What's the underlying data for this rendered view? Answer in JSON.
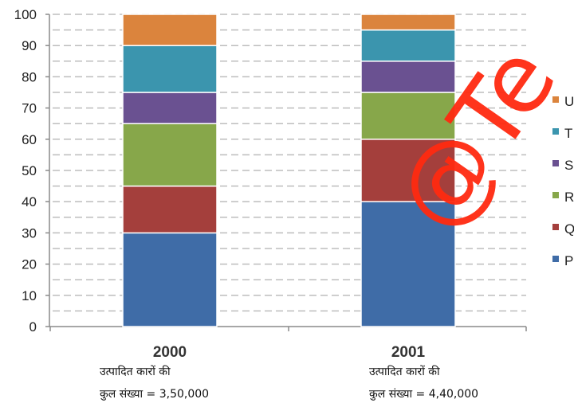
{
  "chart_data": {
    "type": "bar",
    "stacked": true,
    "categories": [
      "2000",
      "2001"
    ],
    "series": [
      {
        "name": "P",
        "color": "#3f6ca7",
        "values": [
          30,
          40
        ]
      },
      {
        "name": "Q",
        "color": "#a43f3c",
        "values": [
          15,
          20
        ]
      },
      {
        "name": "R",
        "color": "#87a74a",
        "values": [
          20,
          15
        ]
      },
      {
        "name": "S",
        "color": "#6a5191",
        "values": [
          10,
          10
        ]
      },
      {
        "name": "T",
        "color": "#3b95ae",
        "values": [
          15,
          10
        ]
      },
      {
        "name": "U",
        "color": "#db843d",
        "values": [
          10,
          5
        ]
      }
    ],
    "ylim": [
      0,
      100
    ],
    "yticks": [
      0,
      10,
      20,
      30,
      40,
      50,
      60,
      70,
      80,
      90,
      100
    ],
    "grid": "dashed",
    "legend": "right"
  },
  "captions": {
    "c2000_line1": "उत्पादित कारों की",
    "c2000_line2": "कुल संख्या = 3,50,000",
    "c2001_line1": "उत्पादित कारों की",
    "c2001_line2": "कुल संख्या = 4,40,000"
  },
  "watermark": "@Te"
}
